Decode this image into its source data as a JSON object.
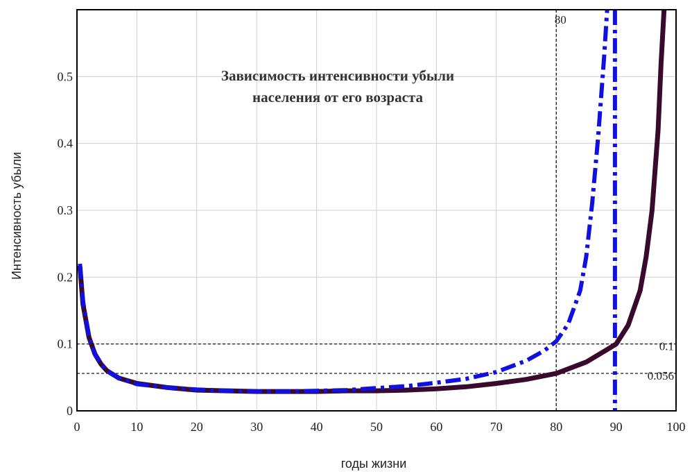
{
  "chart_data": {
    "type": "line",
    "title_lines": [
      "Зависимость интенсивности убыли",
      "населения от его возраста"
    ],
    "xlabel": "годы жизни",
    "ylabel": "Интенсивность убыли",
    "xlim": [
      0,
      100
    ],
    "ylim": [
      0,
      0.6
    ],
    "x_ticks": [
      0,
      10,
      20,
      30,
      40,
      50,
      60,
      70,
      80,
      90,
      100
    ],
    "y_ticks": [
      0,
      0.1,
      0.2,
      0.3,
      0.4,
      0.5
    ],
    "x_tick_labels": [
      "0",
      "10",
      "20",
      "30",
      "40",
      "50",
      "60",
      "70",
      "80",
      "90",
      "100"
    ],
    "y_tick_labels": [
      "0",
      "0.1",
      "0.2",
      "0.3",
      "0.4",
      "0.5"
    ],
    "grid": true,
    "reference_lines": [
      {
        "orientation": "vertical",
        "x": 80,
        "label": "80"
      },
      {
        "orientation": "horizontal",
        "y": 0.1,
        "label": "0.1"
      },
      {
        "orientation": "horizontal",
        "y": 0.056,
        "label": "0.056"
      }
    ],
    "vertical_asymptote": {
      "x": 89.8,
      "color": "#1010e0"
    },
    "series": [
      {
        "style": "solid",
        "color": "#3a0a2e",
        "x": [
          0.5,
          1,
          2,
          3,
          4,
          5,
          7,
          10,
          15,
          20,
          25,
          30,
          35,
          40,
          45,
          50,
          55,
          60,
          65,
          70,
          75,
          80,
          85,
          88,
          90,
          92,
          94,
          95,
          96,
          97,
          97.5,
          98
        ],
        "y": [
          0.215,
          0.16,
          0.11,
          0.085,
          0.07,
          0.06,
          0.049,
          0.041,
          0.035,
          0.031,
          0.03,
          0.029,
          0.029,
          0.029,
          0.03,
          0.03,
          0.031,
          0.033,
          0.036,
          0.041,
          0.047,
          0.056,
          0.073,
          0.089,
          0.1,
          0.128,
          0.18,
          0.23,
          0.3,
          0.42,
          0.52,
          0.6
        ]
      },
      {
        "style": "dash-dot",
        "color": "#1010e0",
        "x": [
          0.5,
          1,
          2,
          3,
          4,
          5,
          7,
          10,
          15,
          20,
          25,
          30,
          35,
          40,
          45,
          50,
          55,
          60,
          65,
          70,
          75,
          78,
          80,
          82,
          84,
          85,
          86,
          87,
          88,
          88.5
        ],
        "y": [
          0.22,
          0.165,
          0.11,
          0.085,
          0.07,
          0.06,
          0.049,
          0.04,
          0.035,
          0.032,
          0.03,
          0.029,
          0.029,
          0.03,
          0.031,
          0.034,
          0.037,
          0.042,
          0.048,
          0.058,
          0.075,
          0.09,
          0.104,
          0.13,
          0.18,
          0.23,
          0.31,
          0.41,
          0.53,
          0.6
        ]
      }
    ]
  }
}
